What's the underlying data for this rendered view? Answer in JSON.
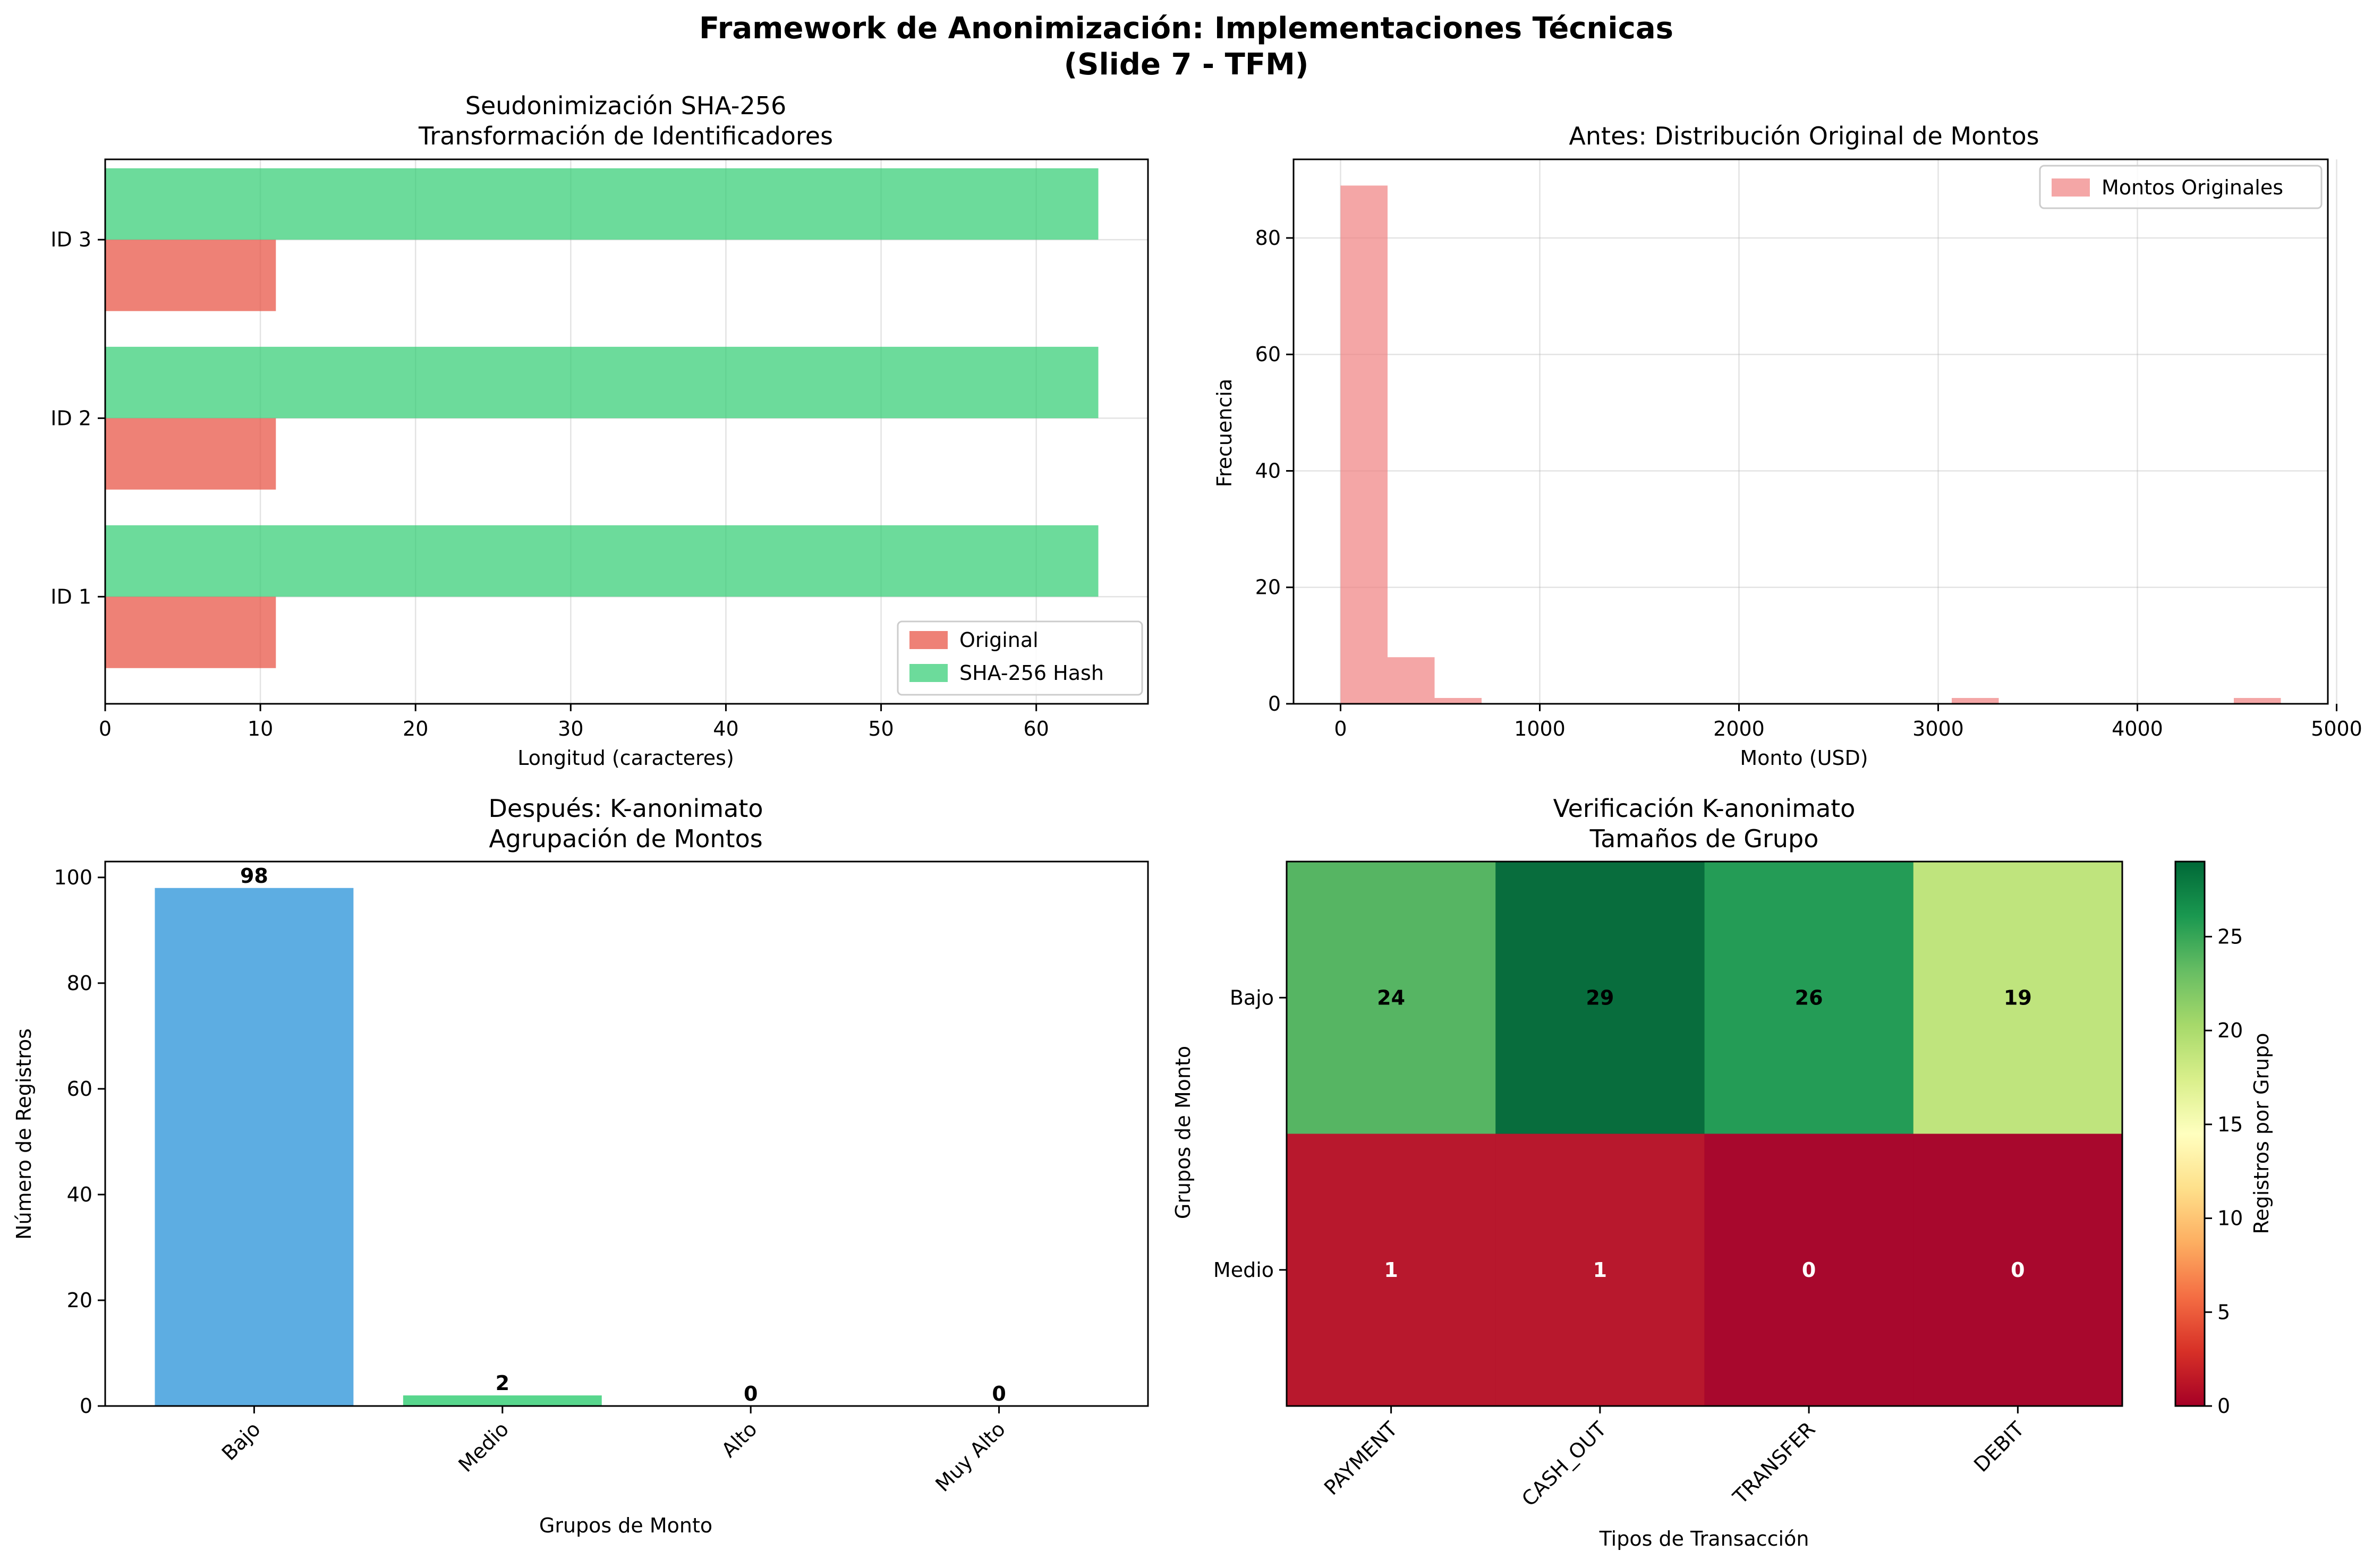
{
  "figure": {
    "title_line1": "Framework de Anonimización: Implementaciones Técnicas",
    "title_line2": "(Slide 7 - TFM)"
  },
  "chart_data": [
    {
      "type": "bar",
      "orientation": "horizontal",
      "title_line1": "Seudonimización SHA-256",
      "title_line2": "Transformación de Identificadores",
      "categories": [
        "ID 1",
        "ID 2",
        "ID 3"
      ],
      "series": [
        {
          "name": "Original",
          "values": [
            11,
            11,
            11
          ],
          "color": "#e74c3c"
        },
        {
          "name": "SHA-256 Hash",
          "values": [
            64,
            64,
            64
          ],
          "color": "#2ecc71"
        }
      ],
      "xlabel": "Longitud (caracteres)",
      "xlim": [
        0,
        67.2
      ],
      "xticks": [
        0,
        10,
        20,
        30,
        40,
        50,
        60
      ],
      "grid": true,
      "legend": "lower-right"
    },
    {
      "type": "histogram",
      "title": "Antes: Distribución Original de Montos",
      "series": [
        {
          "name": "Montos Originales",
          "color": "#f08080",
          "bins": [
            {
              "x0": 0,
              "x1": 236,
              "count": 89
            },
            {
              "x0": 236,
              "x1": 472,
              "count": 8
            },
            {
              "x0": 472,
              "x1": 708,
              "count": 1
            },
            {
              "x0": 3068,
              "x1": 3304,
              "count": 1
            },
            {
              "x0": 4484,
              "x1": 4720,
              "count": 1
            }
          ]
        }
      ],
      "xlabel": "Monto (USD)",
      "ylabel": "Frecuencia",
      "xlim": [
        -236,
        4956
      ],
      "ylim": [
        0,
        93.5
      ],
      "xticks": [
        0,
        1000,
        2000,
        3000,
        4000,
        5000
      ],
      "yticks": [
        0,
        20,
        40,
        60,
        80
      ],
      "grid": true,
      "legend": "top-right"
    },
    {
      "type": "bar",
      "title_line1": "Después: K-anonimato",
      "title_line2": "Agrupación de Montos",
      "categories": [
        "Bajo",
        "Medio",
        "Alto",
        "Muy Alto"
      ],
      "values": [
        98,
        2,
        0,
        0
      ],
      "colors": [
        "#3498db",
        "#2ecc71",
        "#e74c3c",
        "#f39c12"
      ],
      "xlabel": "Grupos de Monto",
      "ylabel": "Número de Registros",
      "ylim": [
        0,
        103
      ],
      "yticks": [
        0,
        20,
        40,
        60,
        80,
        100
      ]
    },
    {
      "type": "heatmap",
      "title_line1": "Verificación K-anonimato",
      "title_line2": "Tamaños de Grupo",
      "rows": [
        "Bajo",
        "Medio"
      ],
      "columns": [
        "PAYMENT",
        "CASH_OUT",
        "TRANSFER",
        "DEBIT"
      ],
      "values": [
        [
          24,
          29,
          26,
          19
        ],
        [
          1,
          1,
          0,
          0
        ]
      ],
      "xlabel": "Tipos de Transacción",
      "ylabel": "Grupos de Monto",
      "colorbar_label": "Registros por Grupo",
      "colorbar_range": [
        0,
        29
      ],
      "colorbar_ticks": [
        0,
        5,
        10,
        15,
        20,
        25
      ],
      "colormap": "RdYlGn"
    }
  ]
}
